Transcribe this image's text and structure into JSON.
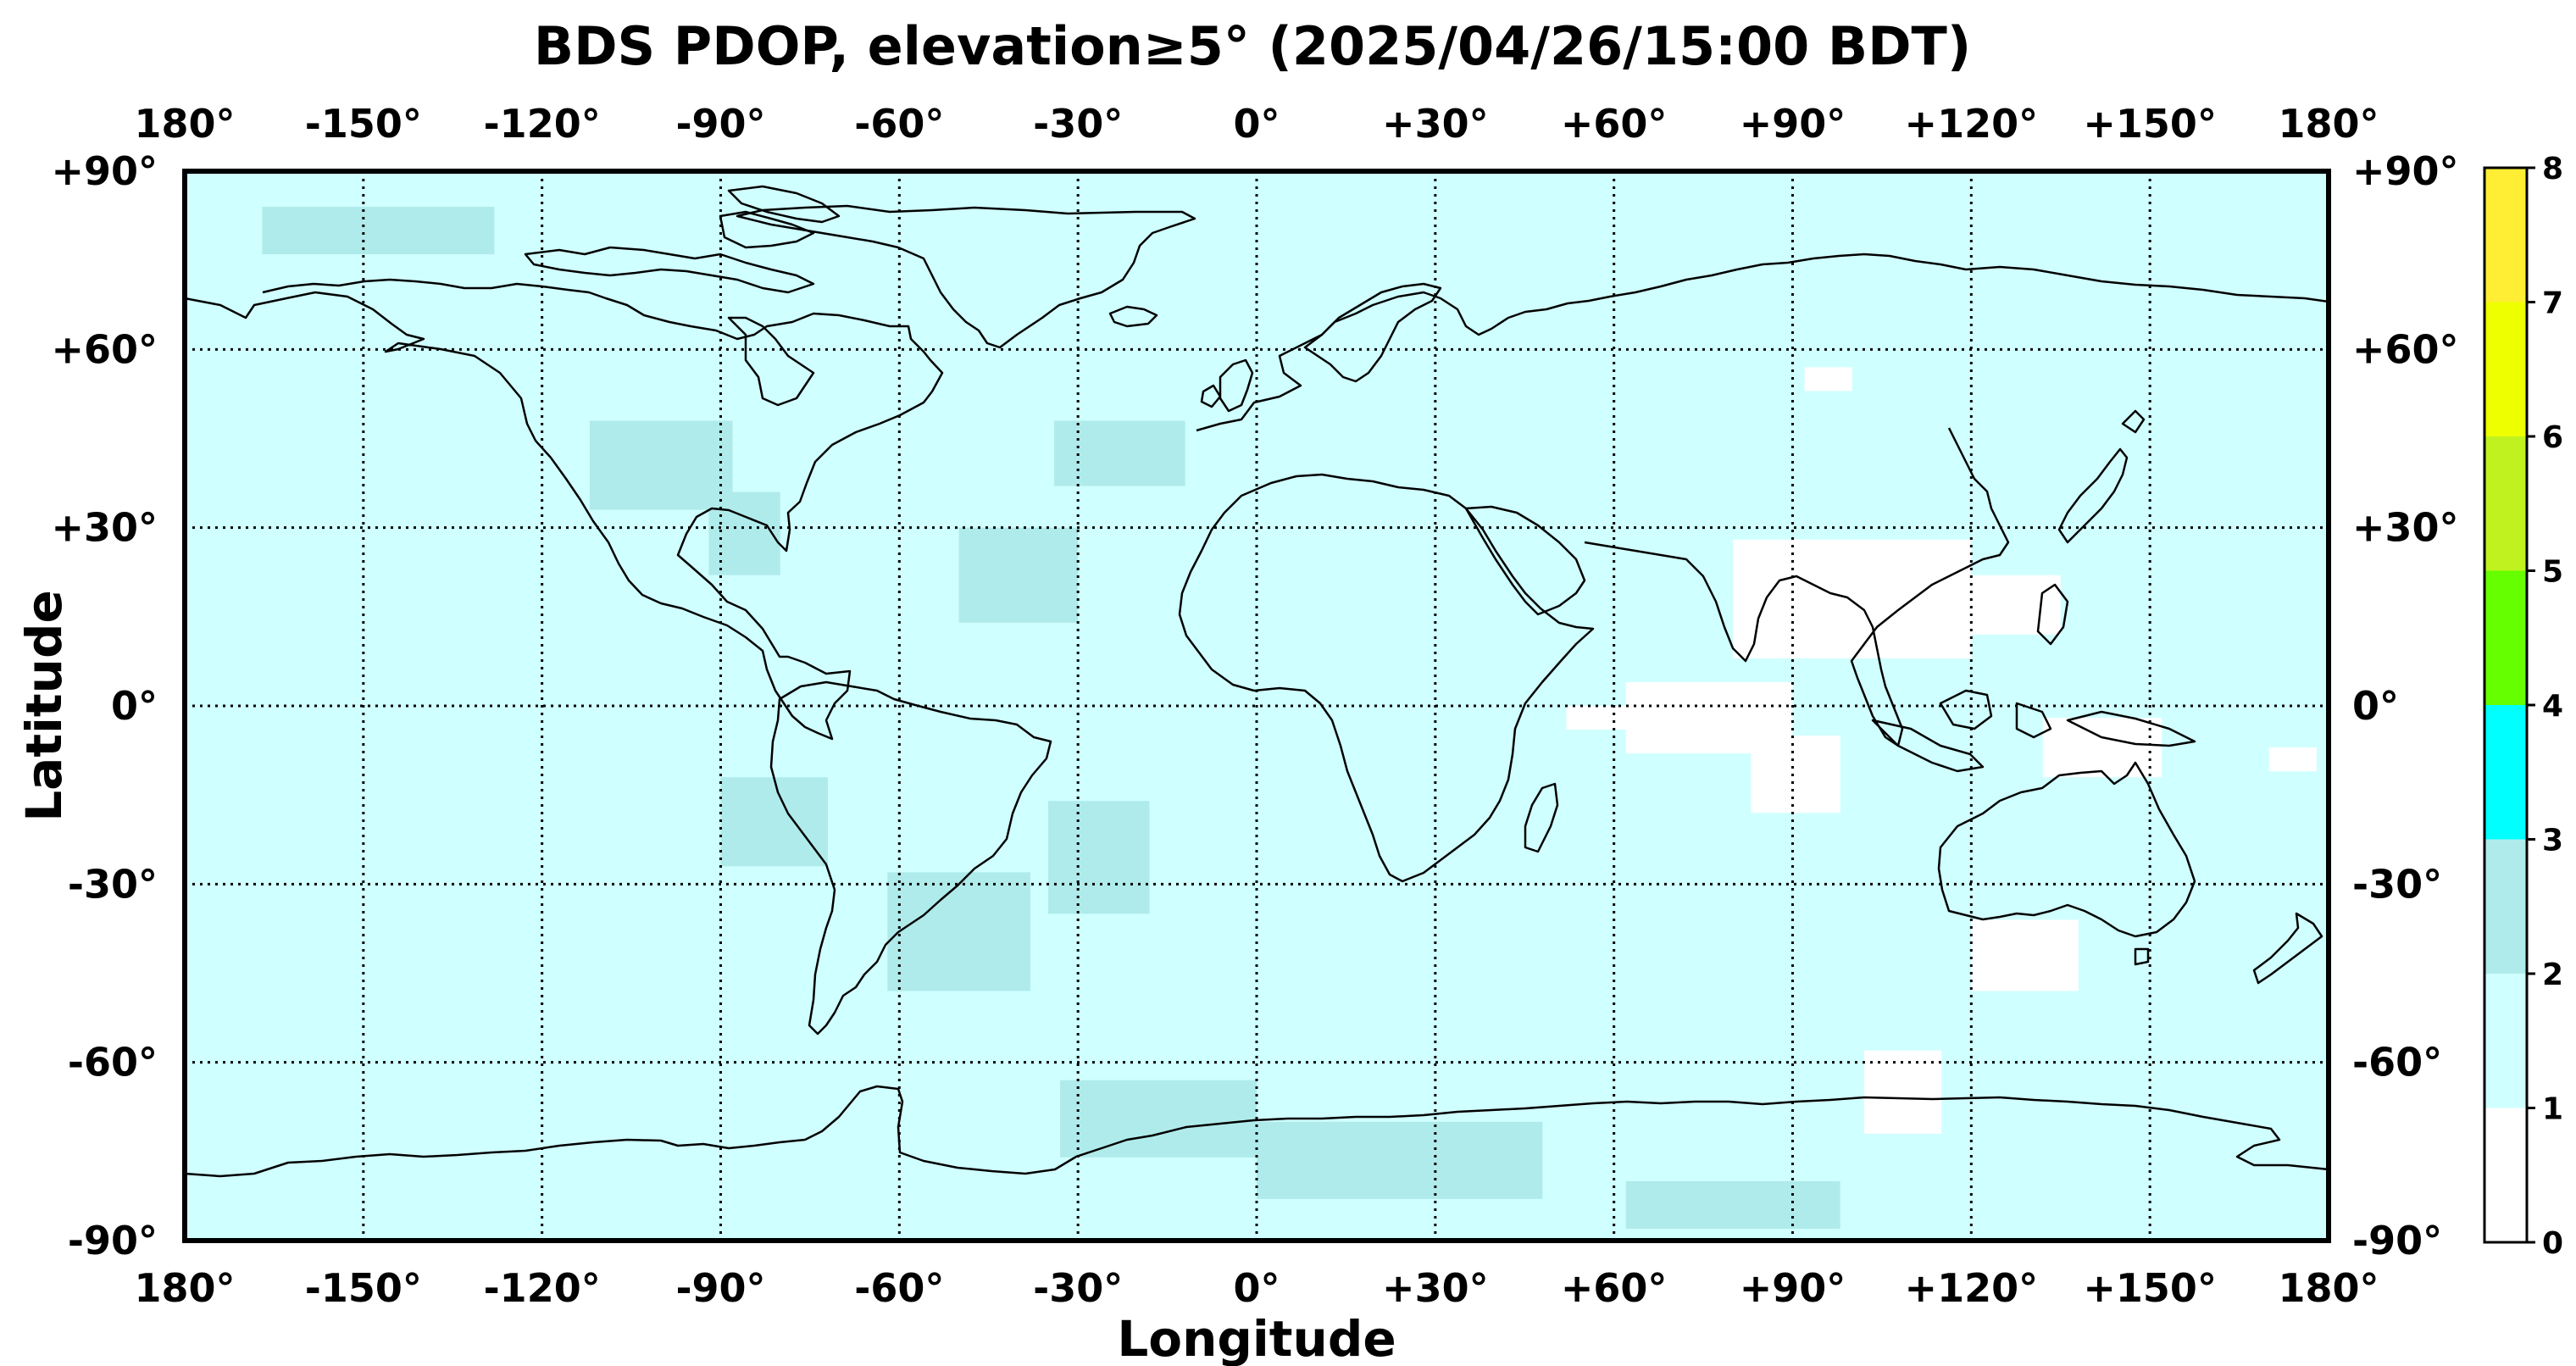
{
  "title": "BDS PDOP, elevation≥5° (2025/04/26/15:00 BDT)",
  "xlabel": "Longitude",
  "ylabel": "Latitude",
  "lon_ticks": [
    "180°",
    "-150°",
    "-120°",
    "-90°",
    "-60°",
    "-30°",
    "0°",
    "+30°",
    "+60°",
    "+90°",
    "+120°",
    "+150°",
    "180°"
  ],
  "lat_ticks": [
    "+90°",
    "+60°",
    "+30°",
    "0°",
    "-30°",
    "-60°",
    "-90°"
  ],
  "colorbar": {
    "ticks": [
      "0",
      "1",
      "2",
      "3",
      "4",
      "5",
      "6",
      "7",
      "8"
    ],
    "bins": [
      {
        "range": [
          0,
          1
        ],
        "color": "#ffffff"
      },
      {
        "range": [
          1,
          2
        ],
        "color": "#d0ffff"
      },
      {
        "range": [
          2,
          3
        ],
        "color": "#b0ebeb"
      },
      {
        "range": [
          3,
          4
        ],
        "color": "#00ffff"
      },
      {
        "range": [
          4,
          5
        ],
        "color": "#66ff00"
      },
      {
        "range": [
          5,
          6
        ],
        "color": "#bff21e"
      },
      {
        "range": [
          6,
          7
        ],
        "color": "#eeff00"
      },
      {
        "range": [
          7,
          8
        ],
        "color": "#ffee33"
      }
    ]
  },
  "map": {
    "background_pdop_bin": [
      1,
      2
    ],
    "regions_pdop_2_3": [
      {
        "lon": [
          -167,
          -128
        ],
        "lat": [
          76,
          84
        ]
      },
      {
        "lon": [
          -112,
          -88
        ],
        "lat": [
          33,
          48
        ]
      },
      {
        "lon": [
          -92,
          -80
        ],
        "lat": [
          22,
          36
        ]
      },
      {
        "lon": [
          -50,
          -30
        ],
        "lat": [
          14,
          30
        ]
      },
      {
        "lon": [
          -34,
          -12
        ],
        "lat": [
          37,
          48
        ]
      },
      {
        "lon": [
          -90,
          -72
        ],
        "lat": [
          -27,
          -12
        ]
      },
      {
        "lon": [
          -62,
          -38
        ],
        "lat": [
          -48,
          -28
        ]
      },
      {
        "lon": [
          -35,
          -18
        ],
        "lat": [
          -35,
          -16
        ]
      },
      {
        "lon": [
          -33,
          0
        ],
        "lat": [
          -76,
          -63
        ]
      },
      {
        "lon": [
          0,
          48
        ],
        "lat": [
          -83,
          -70
        ]
      },
      {
        "lon": [
          62,
          98
        ],
        "lat": [
          -88,
          -80
        ]
      }
    ],
    "regions_pdop_0_1": [
      {
        "lon": [
          80,
          120
        ],
        "lat": [
          8,
          28
        ]
      },
      {
        "lon": [
          120,
          135
        ],
        "lat": [
          12,
          22
        ]
      },
      {
        "lon": [
          62,
          90
        ],
        "lat": [
          -8,
          4
        ]
      },
      {
        "lon": [
          52,
          65
        ],
        "lat": [
          -4,
          0
        ]
      },
      {
        "lon": [
          83,
          98
        ],
        "lat": [
          -18,
          -5
        ]
      },
      {
        "lon": [
          132,
          152
        ],
        "lat": [
          -12,
          -2
        ]
      },
      {
        "lon": [
          120,
          138
        ],
        "lat": [
          -48,
          -36
        ]
      },
      {
        "lon": [
          102,
          115
        ],
        "lat": [
          -72,
          -58
        ]
      },
      {
        "lon": [
          92,
          100
        ],
        "lat": [
          53,
          57
        ]
      },
      {
        "lon": [
          170,
          178
        ],
        "lat": [
          -11,
          -7
        ]
      }
    ]
  }
}
